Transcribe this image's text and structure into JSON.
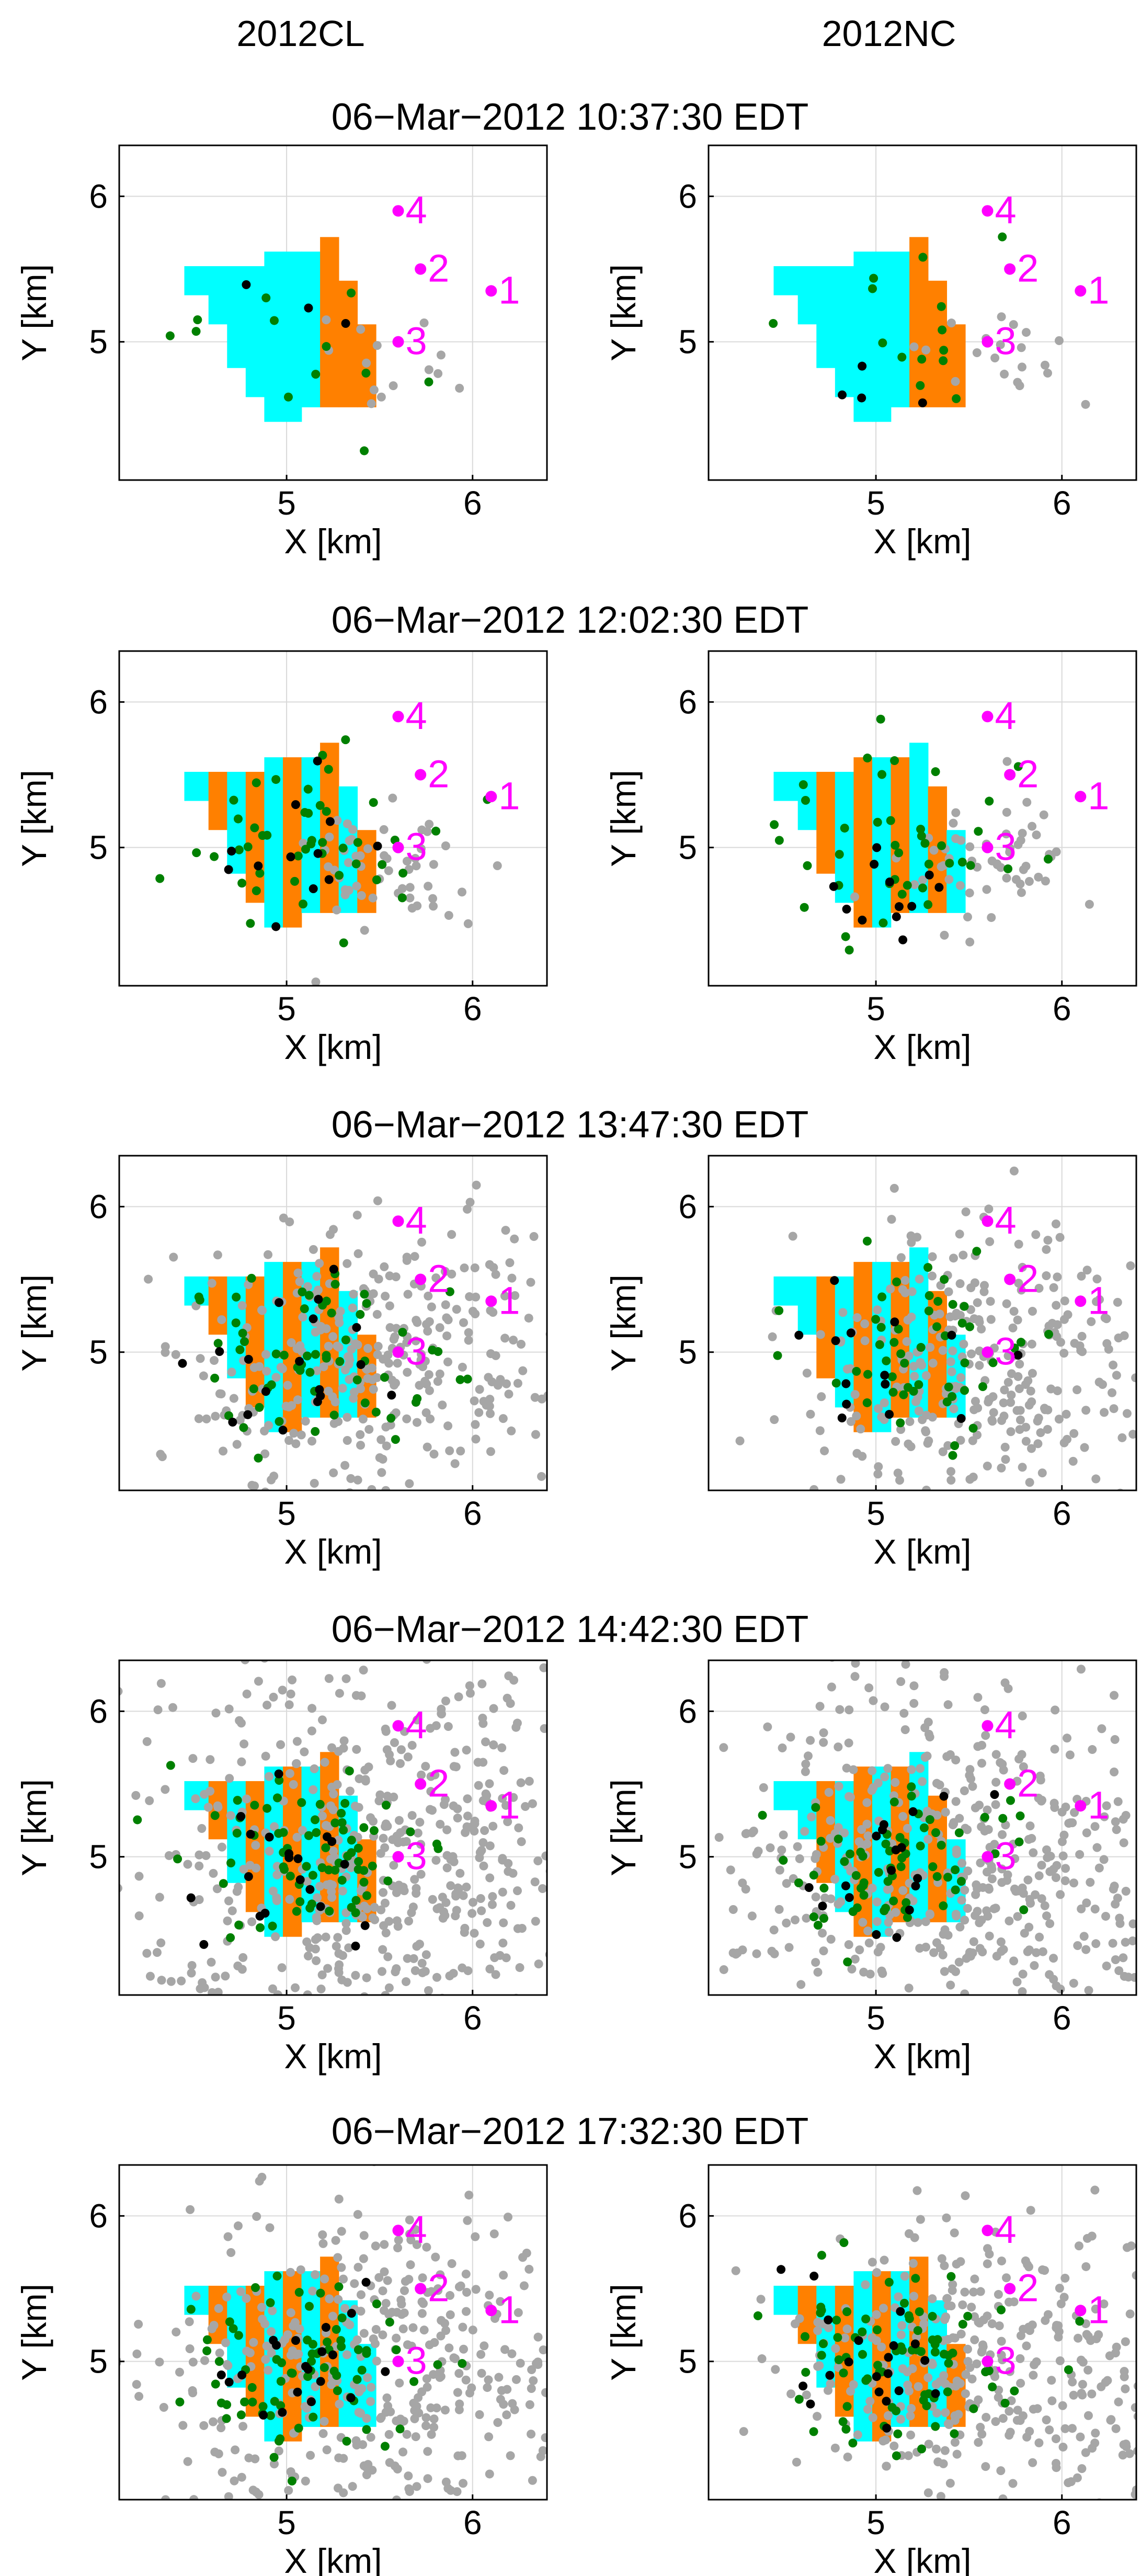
{
  "columns": [
    "2012CL",
    "2012NC"
  ],
  "rows": [
    {
      "title": "06−Mar−2012 10:37:30 EDT"
    },
    {
      "title": "06−Mar−2012 12:02:30 EDT"
    },
    {
      "title": "06−Mar−2012 13:47:30 EDT"
    },
    {
      "title": "06−Mar−2012 14:42:30 EDT"
    },
    {
      "title": "06−Mar−2012 17:32:30 EDT"
    }
  ],
  "colors": {
    "active_stage": "#ff8000",
    "completed_stages": "#00ffff",
    "event_gray": "#a6a6a6",
    "event_green": "#008000",
    "event_black": "#000000",
    "well_markers": "#ff00ff",
    "grid": "#d9d9d9"
  },
  "chart_data": {
    "type": "scatter",
    "layout": "5 rows x 2 columns of map panels",
    "xlabel": "X [km]",
    "ylabel": "Y [km]",
    "xlim": [
      4.1,
      6.4
    ],
    "ylim": [
      4.05,
      6.35
    ],
    "xticks": [
      5,
      6
    ],
    "yticks": [
      5,
      6
    ],
    "grid": true,
    "wells": [
      {
        "label": "4",
        "x": 5.6,
        "y": 5.9
      },
      {
        "label": "2",
        "x": 5.72,
        "y": 5.5
      },
      {
        "label": "1",
        "x": 6.1,
        "y": 5.35
      },
      {
        "label": "3",
        "x": 5.6,
        "y": 5.0
      }
    ],
    "stage_columns": [
      {
        "x0": 4.45,
        "x1": 4.58,
        "y0": 5.32,
        "y1": 5.52
      },
      {
        "x0": 4.58,
        "x1": 4.68,
        "y0": 5.12,
        "y1": 5.52
      },
      {
        "x0": 4.68,
        "x1": 4.78,
        "y0": 4.82,
        "y1": 5.52
      },
      {
        "x0": 4.78,
        "x1": 4.88,
        "y0": 4.62,
        "y1": 5.52
      },
      {
        "x0": 4.88,
        "x1": 4.98,
        "y0": 4.45,
        "y1": 5.62
      },
      {
        "x0": 4.98,
        "x1": 5.08,
        "y0": 4.45,
        "y1": 5.62
      },
      {
        "x0": 5.08,
        "x1": 5.18,
        "y0": 4.55,
        "y1": 5.62
      },
      {
        "x0": 5.18,
        "x1": 5.28,
        "y0": 4.55,
        "y1": 5.72
      },
      {
        "x0": 5.28,
        "x1": 5.38,
        "y0": 4.55,
        "y1": 5.42
      },
      {
        "x0": 5.38,
        "x1": 5.48,
        "y0": 4.55,
        "y1": 5.12
      }
    ],
    "panels": [
      {
        "row": 0,
        "column": "2012CL",
        "orange_stage_columns": [
          7,
          8,
          9
        ],
        "gray_events": 14,
        "green_events": 12,
        "black_events": 3
      },
      {
        "row": 0,
        "column": "2012NC",
        "orange_stage_columns": [
          7,
          8,
          9
        ],
        "gray_events": 20,
        "green_events": 14,
        "black_events": 4
      },
      {
        "row": 1,
        "column": "2012CL",
        "orange_stage_columns": [
          1,
          3,
          5,
          7,
          9
        ],
        "gray_events": 55,
        "green_events": 45,
        "black_events": 12
      },
      {
        "row": 1,
        "column": "2012NC",
        "orange_stage_columns": [
          2,
          4,
          6,
          8
        ],
        "gray_events": 55,
        "green_events": 40,
        "black_events": 12
      },
      {
        "row": 2,
        "column": "2012CL",
        "orange_stage_columns": [
          1,
          3,
          5,
          7,
          9
        ],
        "gray_events": 360,
        "green_events": 60,
        "black_events": 18
      },
      {
        "row": 2,
        "column": "2012NC",
        "orange_stage_columns": [
          2,
          4,
          6,
          8
        ],
        "gray_events": 320,
        "green_events": 50,
        "black_events": 14
      },
      {
        "row": 3,
        "column": "2012CL",
        "orange_stage_columns": [
          1,
          3,
          5,
          7,
          9
        ],
        "gray_events": 620,
        "green_events": 70,
        "black_events": 20
      },
      {
        "row": 3,
        "column": "2012NC",
        "orange_stage_columns": [
          2,
          4,
          6,
          8
        ],
        "gray_events": 600,
        "green_events": 65,
        "black_events": 18
      },
      {
        "row": 4,
        "column": "2012CL",
        "orange_stage_columns": [
          1,
          3,
          5,
          7
        ],
        "gray_events": 420,
        "green_events": 75,
        "black_events": 20
      },
      {
        "row": 4,
        "column": "2012NC",
        "orange_stage_columns": [
          1,
          3,
          5,
          7,
          9
        ],
        "gray_events": 360,
        "green_events": 80,
        "black_events": 20
      }
    ]
  }
}
